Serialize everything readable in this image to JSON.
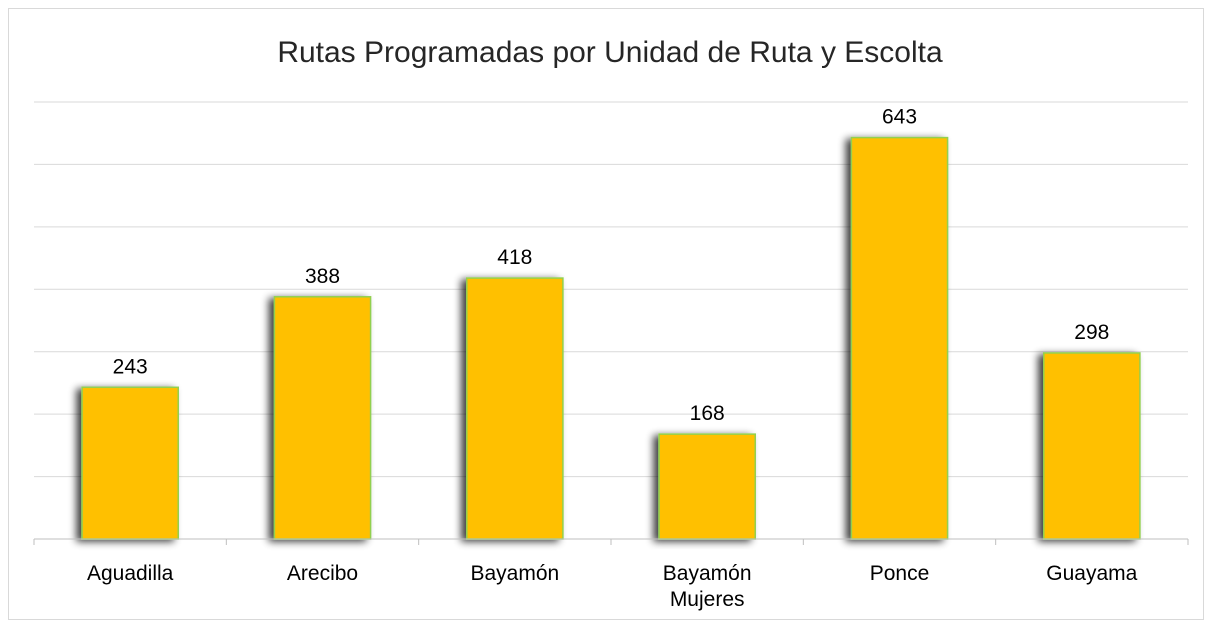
{
  "chart_data": {
    "type": "bar",
    "title": "Rutas Programadas por Unidad de Ruta y Escolta",
    "categories": [
      [
        "Aguadilla"
      ],
      [
        "Arecibo"
      ],
      [
        "Bayamón"
      ],
      [
        "Bayamón",
        "Mujeres"
      ],
      [
        "Ponce"
      ],
      [
        "Guayama"
      ]
    ],
    "values": [
      243,
      388,
      418,
      168,
      643,
      298
    ],
    "ylim": [
      0,
      700
    ],
    "grid": true,
    "legend": "none",
    "xlabel": "",
    "ylabel": "",
    "colors": {
      "bar_fill": "#ffc000",
      "bar_border": "#92d050",
      "bar_shadow": "#7f7f7f"
    }
  }
}
